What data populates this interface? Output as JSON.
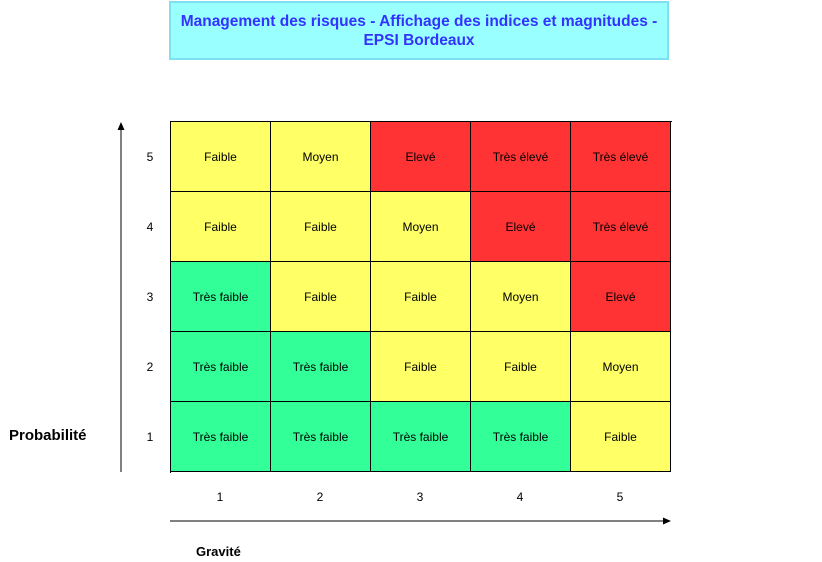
{
  "title": {
    "line1": "Management des risques - Affichage des indices et magnitudes -",
    "line2": "EPSI Bordeaux"
  },
  "axes": {
    "y_title": "Probabilité",
    "x_title": "Gravité",
    "y_ticks": [
      "5",
      "4",
      "3",
      "2",
      "1"
    ],
    "x_ticks": [
      "1",
      "2",
      "3",
      "4",
      "5"
    ]
  },
  "levels": {
    "tres_faible": {
      "label": "Très faible",
      "color": "#33ff99"
    },
    "faible": {
      "label": "Faible",
      "color": "#ffff66"
    },
    "moyen": {
      "label": "Moyen",
      "color": "#ffff66"
    },
    "eleve": {
      "label": "Elevé",
      "color": "#ff3333"
    },
    "tres_eleve": {
      "label": "Très élevé",
      "color": "#ff3333"
    }
  },
  "matrix": [
    [
      "Faible",
      "Moyen",
      "Elevé",
      "Très élevé",
      "Très élevé"
    ],
    [
      "Faible",
      "Faible",
      "Moyen",
      "Elevé",
      "Très élevé"
    ],
    [
      "Très faible",
      "Faible",
      "Faible",
      "Moyen",
      "Elevé"
    ],
    [
      "Très faible",
      "Très faible",
      "Faible",
      "Faible",
      "Moyen"
    ],
    [
      "Très faible",
      "Très faible",
      "Très faible",
      "Très faible",
      "Faible"
    ]
  ]
}
